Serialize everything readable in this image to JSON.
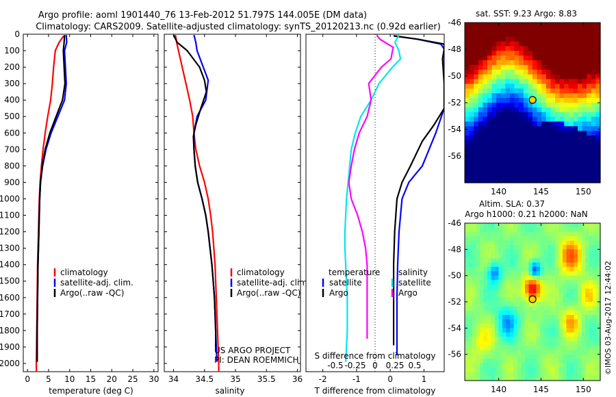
{
  "header": {
    "line1": "Argo profile: aoml 1901440_76 13-Feb-2012 51.797S 144.005E (DM data)",
    "line2": "Climatology: CARS2009. Satellite-adjusted climatology: synTS_20120213.nc (0.92d earlier)"
  },
  "watermark": "©IMOS 03-Aug-2017 12:44:02",
  "colors": {
    "climatology": "#ff0000",
    "satellite": "#0000ff",
    "argo": "#000000",
    "s_satellite": "#00e5ee",
    "s_argo": "#ff00ff"
  },
  "chart_data": [
    {
      "type": "line",
      "xlabel": "temperature (deg C)",
      "xlim": [
        -1,
        31
      ],
      "xticks": [
        "0",
        "5",
        "10",
        "15",
        "20",
        "25",
        "30"
      ],
      "ylim": [
        0,
        2050
      ],
      "yticks": [
        "0",
        "100",
        "200",
        "300",
        "400",
        "500",
        "600",
        "700",
        "800",
        "900",
        "1000",
        "1100",
        "1200",
        "1300",
        "1400",
        "1500",
        "1600",
        "1700",
        "1800",
        "1900",
        "2000"
      ],
      "legend": [
        "climatology",
        "satellite-adj. clim.",
        "Argo(..raw -QC)"
      ],
      "series": [
        {
          "name": "climatology",
          "color": "#ff0000",
          "points": [
            [
              8.6,
              10
            ],
            [
              7.5,
              50
            ],
            [
              6.6,
              100
            ],
            [
              6.2,
              200
            ],
            [
              5.9,
              300
            ],
            [
              5.5,
              400
            ],
            [
              4.8,
              500
            ],
            [
              4.2,
              600
            ],
            [
              3.7,
              700
            ],
            [
              3.3,
              800
            ],
            [
              3.0,
              900
            ],
            [
              2.8,
              1000
            ],
            [
              2.6,
              1200
            ],
            [
              2.4,
              1400
            ],
            [
              2.3,
              1600
            ],
            [
              2.2,
              1800
            ],
            [
              2.1,
              2000
            ],
            [
              2.1,
              2050
            ]
          ]
        },
        {
          "name": "satellite-adj. clim.",
          "color": "#0000ff",
          "points": [
            [
              9.2,
              5
            ],
            [
              9.3,
              50
            ],
            [
              8.8,
              100
            ],
            [
              9.0,
              200
            ],
            [
              9.2,
              300
            ],
            [
              8.8,
              400
            ],
            [
              7.2,
              500
            ],
            [
              5.6,
              600
            ],
            [
              4.4,
              700
            ],
            [
              3.6,
              800
            ],
            [
              3.1,
              900
            ],
            [
              2.9,
              1000
            ],
            [
              2.7,
              1200
            ],
            [
              2.5,
              1400
            ],
            [
              2.4,
              1600
            ],
            [
              2.3,
              1800
            ],
            [
              2.3,
              1990
            ]
          ]
        },
        {
          "name": "Argo(..raw -QC)",
          "color": "#000000",
          "points": [
            [
              8.8,
              5
            ],
            [
              8.7,
              50
            ],
            [
              8.5,
              100
            ],
            [
              8.7,
              200
            ],
            [
              8.9,
              300
            ],
            [
              8.3,
              400
            ],
            [
              6.8,
              500
            ],
            [
              5.3,
              600
            ],
            [
              4.2,
              700
            ],
            [
              3.5,
              800
            ],
            [
              3.1,
              900
            ],
            [
              2.9,
              1000
            ],
            [
              2.7,
              1200
            ],
            [
              2.5,
              1400
            ],
            [
              2.4,
              1600
            ],
            [
              2.3,
              1800
            ],
            [
              2.3,
              1990
            ]
          ]
        }
      ]
    },
    {
      "type": "line",
      "xlabel": "salinity",
      "xlim": [
        33.85,
        36.05
      ],
      "xticks": [
        "34",
        "34.5",
        "35",
        "35.5",
        "36"
      ],
      "ylim": [
        0,
        2050
      ],
      "legend": [
        "climatology",
        "satellite-adj. clim.",
        "Argo(..raw -QC)"
      ],
      "annotation": [
        "US ARGO PROJECT",
        "PI: DEAN ROEMMICH"
      ],
      "series": [
        {
          "name": "climatology",
          "color": "#ff0000",
          "points": [
            [
              34.03,
              5
            ],
            [
              34.05,
              50
            ],
            [
              34.08,
              100
            ],
            [
              34.14,
              200
            ],
            [
              34.2,
              300
            ],
            [
              34.26,
              400
            ],
            [
              34.31,
              500
            ],
            [
              34.33,
              600
            ],
            [
              34.36,
              700
            ],
            [
              34.42,
              800
            ],
            [
              34.5,
              900
            ],
            [
              34.56,
              1000
            ],
            [
              34.6,
              1100
            ],
            [
              34.63,
              1200
            ],
            [
              34.65,
              1300
            ],
            [
              34.67,
              1400
            ],
            [
              34.69,
              1600
            ],
            [
              34.71,
              1800
            ],
            [
              34.73,
              2000
            ],
            [
              34.73,
              2050
            ]
          ]
        },
        {
          "name": "satellite-adj. clim.",
          "color": "#0000ff",
          "points": [
            [
              34.33,
              5
            ],
            [
              34.36,
              50
            ],
            [
              34.38,
              100
            ],
            [
              34.48,
              200
            ],
            [
              34.56,
              280
            ],
            [
              34.52,
              400
            ],
            [
              34.38,
              500
            ],
            [
              34.33,
              600
            ],
            [
              34.33,
              700
            ],
            [
              34.35,
              800
            ],
            [
              34.39,
              900
            ],
            [
              34.46,
              1000
            ],
            [
              34.52,
              1100
            ],
            [
              34.56,
              1200
            ],
            [
              34.59,
              1300
            ],
            [
              34.62,
              1400
            ],
            [
              34.64,
              1500
            ],
            [
              34.66,
              1600
            ],
            [
              34.67,
              1700
            ],
            [
              34.68,
              1800
            ],
            [
              34.69,
              1900
            ],
            [
              34.7,
              1990
            ]
          ]
        },
        {
          "name": "Argo(..raw -QC)",
          "color": "#000000",
          "points": [
            [
              34.0,
              5
            ],
            [
              34.06,
              50
            ],
            [
              34.22,
              100
            ],
            [
              34.42,
              200
            ],
            [
              34.5,
              280
            ],
            [
              34.53,
              350
            ],
            [
              34.44,
              450
            ],
            [
              34.36,
              550
            ],
            [
              34.32,
              620
            ],
            [
              34.33,
              700
            ],
            [
              34.35,
              800
            ],
            [
              34.39,
              900
            ],
            [
              34.46,
              1000
            ],
            [
              34.52,
              1100
            ],
            [
              34.56,
              1200
            ],
            [
              34.59,
              1300
            ],
            [
              34.62,
              1400
            ],
            [
              34.64,
              1500
            ],
            [
              34.66,
              1600
            ],
            [
              34.67,
              1700
            ],
            [
              34.68,
              1800
            ],
            [
              34.68,
              1900
            ]
          ]
        }
      ]
    },
    {
      "type": "line",
      "xlabel": "T difference from climatology",
      "xlabel2": "S difference from climatology",
      "xlim": [
        -2.5,
        1.6
      ],
      "xticks": [
        "-2",
        "-1",
        "0",
        "1"
      ],
      "x2ticks": [
        "-0.5",
        "-0.25",
        "0",
        "0.25",
        "0.5"
      ],
      "ylim": [
        0,
        2050
      ],
      "legend": {
        "temperature": [
          "satellite",
          "Argo"
        ],
        "salinity": [
          "satellite",
          "Argo"
        ]
      },
      "series": [
        {
          "name": "temperature satellite",
          "color": "#0000ff",
          "points": [
            [
              0.1,
              10
            ],
            [
              0.8,
              30
            ],
            [
              1.5,
              60
            ],
            [
              1.6,
              90
            ],
            [
              1.6,
              250
            ],
            [
              1.6,
              450
            ],
            [
              1.35,
              600
            ],
            [
              0.95,
              800
            ],
            [
              0.55,
              900
            ],
            [
              0.35,
              1000
            ],
            [
              0.26,
              1200
            ],
            [
              0.22,
              1400
            ],
            [
              0.2,
              1600
            ],
            [
              0.2,
              1800
            ],
            [
              0.2,
              1950
            ]
          ]
        },
        {
          "name": "temperature Argo",
          "color": "#000000",
          "points": [
            [
              0.1,
              10
            ],
            [
              0.8,
              30
            ],
            [
              1.6,
              60
            ],
            [
              1.6,
              90
            ],
            [
              1.55,
              150
            ],
            [
              1.6,
              300
            ],
            [
              1.6,
              450
            ],
            [
              1.3,
              550
            ],
            [
              0.95,
              650
            ],
            [
              0.6,
              800
            ],
            [
              0.35,
              900
            ],
            [
              0.2,
              1000
            ],
            [
              0.13,
              1200
            ],
            [
              0.1,
              1400
            ],
            [
              0.1,
              1600
            ],
            [
              0.1,
              1800
            ],
            [
              0.1,
              1890
            ]
          ]
        },
        {
          "name": "salinity satellite",
          "color": "#00e5ee",
          "points": [
            [
              0.3,
              5
            ],
            [
              0.25,
              50
            ],
            [
              0.3,
              100
            ],
            [
              0.32,
              150
            ],
            [
              0.22,
              200
            ],
            [
              0.05,
              300
            ],
            [
              -0.05,
              400
            ],
            [
              -0.18,
              500
            ],
            [
              -0.25,
              600
            ],
            [
              -0.3,
              700
            ],
            [
              -0.32,
              800
            ],
            [
              -0.34,
              900
            ],
            [
              -0.36,
              1000
            ],
            [
              -0.37,
              1100
            ],
            [
              -0.38,
              1200
            ],
            [
              -0.38,
              1300
            ],
            [
              -0.37,
              1400
            ],
            [
              -0.36,
              1500
            ],
            [
              -0.35,
              1600
            ],
            [
              -0.35,
              1700
            ],
            [
              -0.35,
              1800
            ],
            [
              -0.36,
              1900
            ],
            [
              -0.37,
              1990
            ]
          ]
        },
        {
          "name": "salinity Argo",
          "color": "#ff00ff",
          "points": [
            [
              0.02,
              5
            ],
            [
              0.06,
              30
            ],
            [
              0.16,
              60
            ],
            [
              0.23,
              80
            ],
            [
              0.22,
              100
            ],
            [
              0.2,
              150
            ],
            [
              0.08,
              200
            ],
            [
              -0.08,
              300
            ],
            [
              -0.05,
              400
            ],
            [
              -0.1,
              500
            ],
            [
              -0.2,
              600
            ],
            [
              -0.26,
              700
            ],
            [
              -0.3,
              800
            ],
            [
              -0.33,
              900
            ],
            [
              -0.3,
              1000
            ],
            [
              -0.22,
              1100
            ],
            [
              -0.16,
              1200
            ],
            [
              -0.12,
              1300
            ],
            [
              -0.1,
              1400
            ],
            [
              -0.1,
              1500
            ],
            [
              -0.1,
              1600
            ],
            [
              -0.1,
              1700
            ],
            [
              -0.1,
              1800
            ],
            [
              -0.1,
              1850
            ]
          ]
        }
      ]
    },
    {
      "type": "heatmap",
      "title": "sat. SST: 9.23 Argo: 8.83",
      "xlim": [
        136,
        152
      ],
      "ylim": [
        -58,
        -46
      ],
      "xticks": [
        "140",
        "145",
        "150"
      ],
      "yticks": [
        "-46",
        "-48",
        "-50",
        "-52",
        "-54",
        "-56"
      ],
      "marker": {
        "lon": 144.005,
        "lat": -51.797
      }
    },
    {
      "type": "heatmap",
      "title": "Altim. SLA: 0.37",
      "subtitle": "Argo h1000: 0.21 h2000: NaN",
      "xlim": [
        136,
        152
      ],
      "ylim": [
        -58,
        -46
      ],
      "xticks": [
        "140",
        "145",
        "150"
      ],
      "yticks": [
        "-46",
        "-48",
        "-50",
        "-52",
        "-54",
        "-56"
      ],
      "marker": {
        "lon": 144.005,
        "lat": -51.797
      }
    }
  ]
}
